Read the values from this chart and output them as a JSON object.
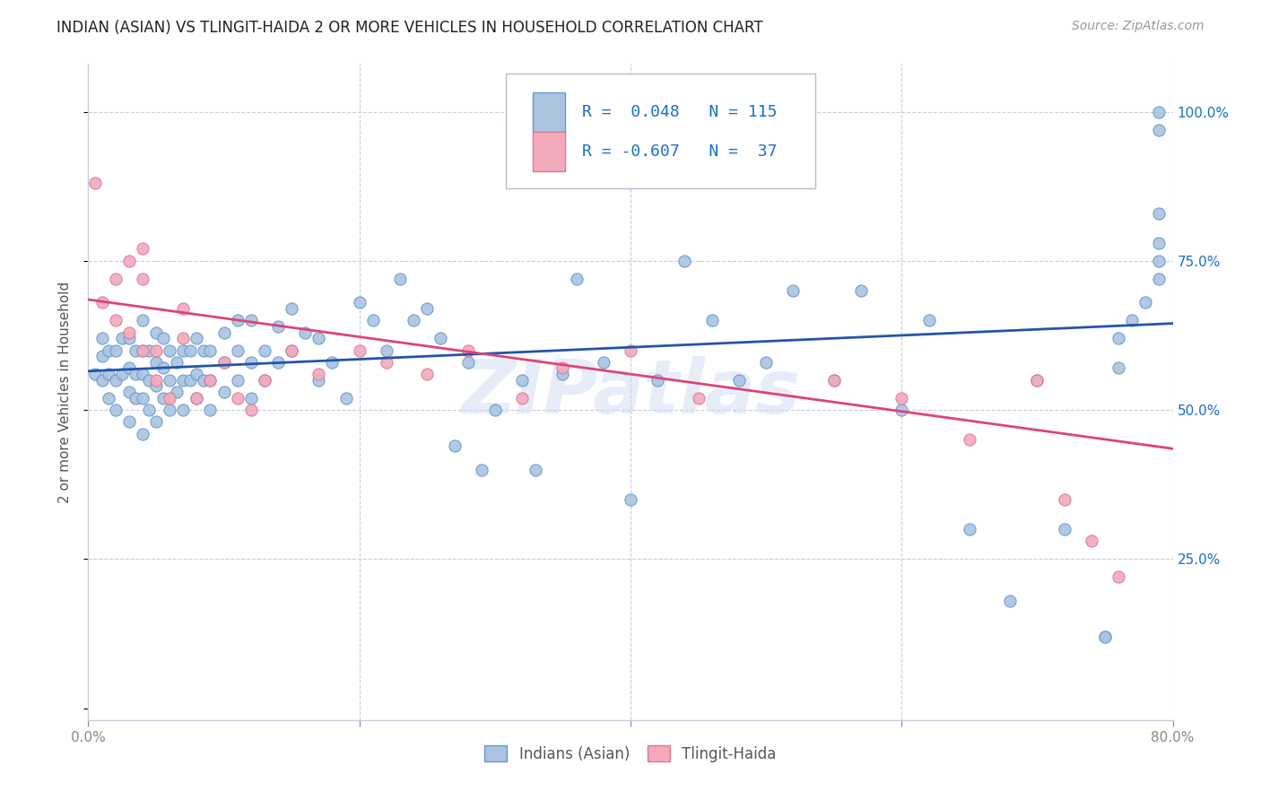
{
  "title": "INDIAN (ASIAN) VS TLINGIT-HAIDA 2 OR MORE VEHICLES IN HOUSEHOLD CORRELATION CHART",
  "source": "Source: ZipAtlas.com",
  "ylabel": "2 or more Vehicles in Household",
  "xlim": [
    0.0,
    0.8
  ],
  "ylim": [
    -0.02,
    1.08
  ],
  "blue_R": 0.048,
  "blue_N": 115,
  "pink_R": -0.607,
  "pink_N": 37,
  "blue_color": "#aac4e0",
  "pink_color": "#f2aabb",
  "blue_edge_color": "#6699cc",
  "pink_edge_color": "#dd7799",
  "blue_line_color": "#2255aa",
  "pink_line_color": "#dd4477",
  "legend_text_color": "#1a6fc4",
  "background_color": "#ffffff",
  "grid_color": "#ccccdd",
  "title_color": "#222222",
  "watermark": "ZIPatlas",
  "blue_line_y0": 0.565,
  "blue_line_y1": 0.645,
  "pink_line_y0": 0.685,
  "pink_line_y1": 0.435,
  "blue_scatter_x": [
    0.005,
    0.01,
    0.01,
    0.01,
    0.015,
    0.015,
    0.015,
    0.02,
    0.02,
    0.02,
    0.025,
    0.025,
    0.03,
    0.03,
    0.03,
    0.03,
    0.035,
    0.035,
    0.035,
    0.04,
    0.04,
    0.04,
    0.04,
    0.04,
    0.045,
    0.045,
    0.045,
    0.05,
    0.05,
    0.05,
    0.05,
    0.055,
    0.055,
    0.055,
    0.06,
    0.06,
    0.06,
    0.065,
    0.065,
    0.07,
    0.07,
    0.07,
    0.075,
    0.075,
    0.08,
    0.08,
    0.08,
    0.085,
    0.085,
    0.09,
    0.09,
    0.09,
    0.1,
    0.1,
    0.1,
    0.11,
    0.11,
    0.11,
    0.12,
    0.12,
    0.12,
    0.13,
    0.13,
    0.14,
    0.14,
    0.15,
    0.15,
    0.16,
    0.17,
    0.17,
    0.18,
    0.19,
    0.2,
    0.21,
    0.22,
    0.23,
    0.24,
    0.25,
    0.26,
    0.27,
    0.28,
    0.29,
    0.3,
    0.32,
    0.33,
    0.35,
    0.36,
    0.38,
    0.4,
    0.42,
    0.44,
    0.46,
    0.48,
    0.5,
    0.52,
    0.55,
    0.57,
    0.6,
    0.62,
    0.65,
    0.68,
    0.7,
    0.72,
    0.75,
    0.75,
    0.76,
    0.76,
    0.77,
    0.78,
    0.79,
    0.79,
    0.79,
    0.79,
    0.79,
    0.79
  ],
  "blue_scatter_y": [
    0.56,
    0.55,
    0.59,
    0.62,
    0.52,
    0.56,
    0.6,
    0.5,
    0.55,
    0.6,
    0.56,
    0.62,
    0.48,
    0.53,
    0.57,
    0.62,
    0.52,
    0.56,
    0.6,
    0.46,
    0.52,
    0.56,
    0.6,
    0.65,
    0.5,
    0.55,
    0.6,
    0.48,
    0.54,
    0.58,
    0.63,
    0.52,
    0.57,
    0.62,
    0.5,
    0.55,
    0.6,
    0.53,
    0.58,
    0.5,
    0.55,
    0.6,
    0.55,
    0.6,
    0.52,
    0.56,
    0.62,
    0.55,
    0.6,
    0.5,
    0.55,
    0.6,
    0.53,
    0.58,
    0.63,
    0.55,
    0.6,
    0.65,
    0.52,
    0.58,
    0.65,
    0.55,
    0.6,
    0.58,
    0.64,
    0.6,
    0.67,
    0.63,
    0.55,
    0.62,
    0.58,
    0.52,
    0.68,
    0.65,
    0.6,
    0.72,
    0.65,
    0.67,
    0.62,
    0.44,
    0.58,
    0.4,
    0.5,
    0.55,
    0.4,
    0.56,
    0.72,
    0.58,
    0.35,
    0.55,
    0.75,
    0.65,
    0.55,
    0.58,
    0.7,
    0.55,
    0.7,
    0.5,
    0.65,
    0.3,
    0.18,
    0.55,
    0.3,
    0.12,
    0.12,
    0.57,
    0.62,
    0.65,
    0.68,
    0.72,
    0.75,
    0.78,
    0.83,
    0.97,
    1.0
  ],
  "pink_scatter_x": [
    0.005,
    0.01,
    0.02,
    0.02,
    0.03,
    0.03,
    0.04,
    0.04,
    0.04,
    0.05,
    0.05,
    0.06,
    0.07,
    0.07,
    0.08,
    0.09,
    0.1,
    0.11,
    0.12,
    0.13,
    0.15,
    0.17,
    0.2,
    0.22,
    0.25,
    0.28,
    0.32,
    0.35,
    0.4,
    0.45,
    0.55,
    0.6,
    0.65,
    0.7,
    0.72,
    0.74,
    0.76
  ],
  "pink_scatter_y": [
    0.88,
    0.68,
    0.72,
    0.65,
    0.63,
    0.75,
    0.6,
    0.72,
    0.77,
    0.55,
    0.6,
    0.52,
    0.62,
    0.67,
    0.52,
    0.55,
    0.58,
    0.52,
    0.5,
    0.55,
    0.6,
    0.56,
    0.6,
    0.58,
    0.56,
    0.6,
    0.52,
    0.57,
    0.6,
    0.52,
    0.55,
    0.52,
    0.45,
    0.55,
    0.35,
    0.28,
    0.22
  ]
}
